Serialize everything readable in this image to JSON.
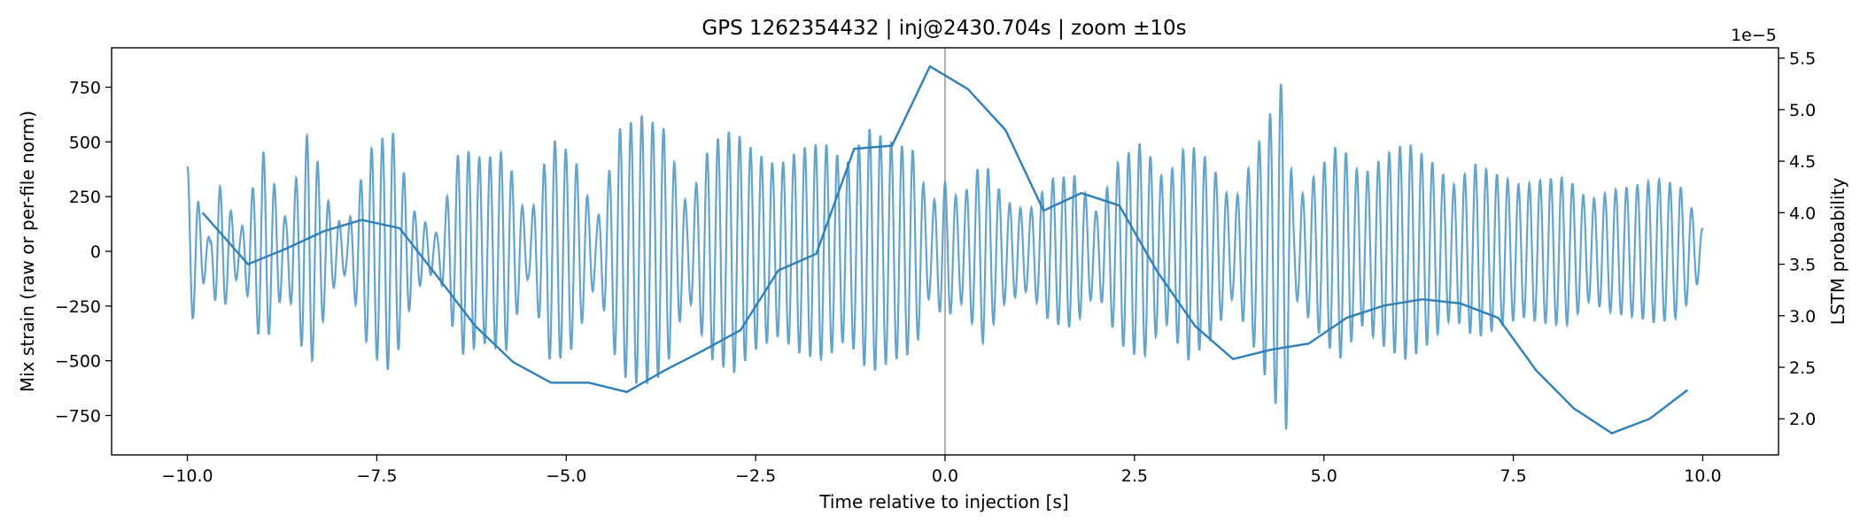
{
  "chart_data": {
    "type": "line",
    "title": "GPS 1262354432 | inj@2430.704s | zoom ±10s",
    "xlabel": "Time relative to injection [s]",
    "ylabel_left": "Mix strain (raw or per-file norm)",
    "ylabel_right": "LSTM probability",
    "right_axis_offset_label": "1e−5",
    "xlim": [
      -11.0,
      11.0
    ],
    "ylim_left": [
      -930,
      930
    ],
    "ylim_right": [
      1.65,
      5.6
    ],
    "x_ticks": [
      -10.0,
      -7.5,
      -5.0,
      -2.5,
      0.0,
      2.5,
      5.0,
      7.5,
      10.0
    ],
    "x_tick_labels": [
      "−10.0",
      "−7.5",
      "−5.0",
      "−2.5",
      "0.0",
      "2.5",
      "5.0",
      "7.5",
      "10.0"
    ],
    "y_ticks_left": [
      -750,
      -500,
      -250,
      0,
      250,
      500,
      750
    ],
    "y_tick_labels_left": [
      "−750",
      "−500",
      "−250",
      "0",
      "250",
      "500",
      "750"
    ],
    "y_ticks_right": [
      2.0,
      2.5,
      3.0,
      3.5,
      4.0,
      4.5,
      5.0,
      5.5
    ],
    "y_tick_labels_right": [
      "2.0",
      "2.5",
      "3.0",
      "3.5",
      "4.0",
      "4.5",
      "5.0",
      "5.5"
    ],
    "injection_marker_x": 0.0,
    "strain_series": {
      "name": "Mix strain",
      "color": "#5b9ec9",
      "x_range": [
        -10.0,
        10.0
      ],
      "carrier_freq_hz": 7.0,
      "envelope": {
        "x": [
          -10.0,
          -9.7,
          -9.6,
          -9.3,
          -9.0,
          -8.7,
          -8.4,
          -8.1,
          -7.9,
          -7.6,
          -7.3,
          -7.0,
          -6.7,
          -6.4,
          -6.1,
          -5.8,
          -5.5,
          -5.2,
          -4.9,
          -4.6,
          -4.3,
          -4.0,
          -3.7,
          -3.4,
          -3.1,
          -2.8,
          -2.5,
          -2.2,
          -1.9,
          -1.6,
          -1.3,
          -1.0,
          -0.7,
          -0.4,
          -0.2,
          0.0,
          0.2,
          0.5,
          0.8,
          1.1,
          1.4,
          1.7,
          2.0,
          2.3,
          2.6,
          2.9,
          3.2,
          3.5,
          3.8,
          4.1,
          4.3,
          4.5,
          4.6,
          4.9,
          5.2,
          5.5,
          5.8,
          6.1,
          6.4,
          6.7,
          7.0,
          7.3,
          7.6,
          7.9,
          8.2,
          8.5,
          8.8,
          9.1,
          9.4,
          9.7,
          10.0
        ],
        "amp": [
          390,
          50,
          320,
          90,
          460,
          150,
          560,
          180,
          100,
          460,
          560,
          180,
          80,
          480,
          420,
          460,
          120,
          520,
          440,
          130,
          560,
          620,
          560,
          200,
          490,
          560,
          450,
          390,
          470,
          500,
          400,
          560,
          500,
          460,
          200,
          320,
          230,
          420,
          230,
          180,
          330,
          350,
          180,
          420,
          500,
          320,
          500,
          410,
          210,
          460,
          640,
          830,
          200,
          360,
          500,
          340,
          440,
          500,
          420,
          300,
          400,
          350,
          300,
          330,
          340,
          230,
          280,
          300,
          330,
          300,
          100
        ]
      }
    },
    "probability_series": {
      "name": "LSTM probability",
      "color": "#2e7fb8",
      "x": [
        -9.8,
        -9.2,
        -8.7,
        -8.2,
        -7.7,
        -7.2,
        -6.7,
        -6.2,
        -5.7,
        -5.2,
        -4.7,
        -4.2,
        -3.7,
        -3.2,
        -2.7,
        -2.2,
        -1.7,
        -1.2,
        -0.7,
        -0.2,
        0.3,
        0.8,
        1.3,
        1.8,
        2.3,
        2.8,
        3.3,
        3.8,
        4.3,
        4.8,
        5.3,
        5.8,
        6.3,
        6.8,
        7.3,
        7.8,
        8.3,
        8.8,
        9.3,
        9.8
      ],
      "y": [
        4.0,
        3.5,
        3.65,
        3.82,
        3.93,
        3.85,
        3.38,
        2.9,
        2.55,
        2.35,
        2.35,
        2.26,
        2.47,
        2.66,
        2.86,
        3.44,
        3.6,
        4.62,
        4.65,
        5.42,
        5.2,
        4.8,
        4.02,
        4.19,
        4.07,
        3.43,
        2.9,
        2.58,
        2.67,
        2.73,
        2.98,
        3.1,
        3.16,
        3.12,
        2.98,
        2.47,
        2.1,
        1.86,
        2.0,
        2.28
      ]
    }
  }
}
